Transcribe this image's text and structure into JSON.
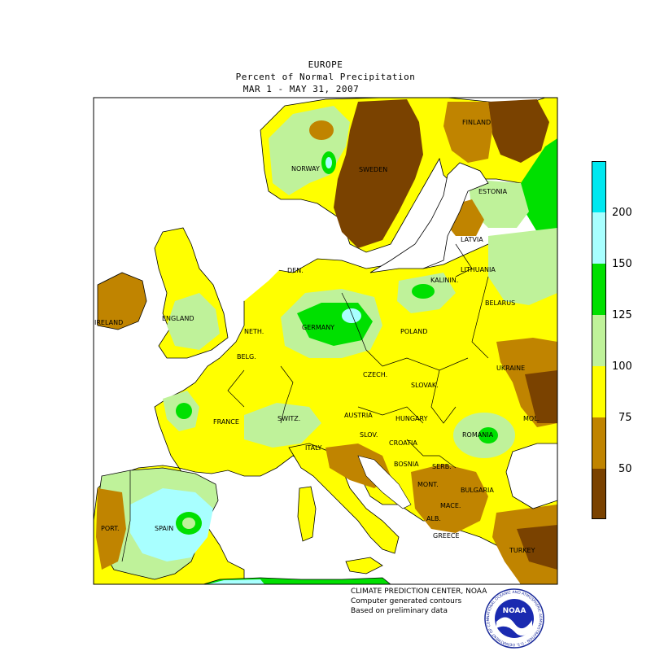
{
  "title": {
    "line1": "EUROPE",
    "line2": "Percent of Normal Precipitation",
    "line3": "MAR  1 - MAY 31, 2007"
  },
  "legend": {
    "labels": [
      "200",
      "150",
      "125",
      "100",
      "75",
      "50"
    ],
    "bins": [
      {
        "color": "#7a4200",
        "range": "<50"
      },
      {
        "color": "#c08400",
        "range": "50-75"
      },
      {
        "color": "#ffff00",
        "range": "75-100"
      },
      {
        "color": "#bff29a",
        "range": "100-125"
      },
      {
        "color": "#00e000",
        "range": "125-150"
      },
      {
        "color": "#a8ffff",
        "range": "150-200"
      },
      {
        "color": "#00e8f0",
        "range": ">200"
      }
    ]
  },
  "countries": [
    {
      "key": "finland",
      "label": "FINLAND"
    },
    {
      "key": "norway",
      "label": "NORWAY"
    },
    {
      "key": "sweden",
      "label": "SWEDEN"
    },
    {
      "key": "estonia",
      "label": "ESTONIA"
    },
    {
      "key": "latvia",
      "label": "LATVIA"
    },
    {
      "key": "lithuania",
      "label": "LITHUANIA"
    },
    {
      "key": "kalinin",
      "label": "KALININ."
    },
    {
      "key": "belarus",
      "label": "BELARUS"
    },
    {
      "key": "den",
      "label": "DEN."
    },
    {
      "key": "ireland",
      "label": "IRELAND"
    },
    {
      "key": "england",
      "label": "ENGLAND"
    },
    {
      "key": "neth",
      "label": "NETH."
    },
    {
      "key": "germany",
      "label": "GERMANY"
    },
    {
      "key": "poland",
      "label": "POLAND"
    },
    {
      "key": "belg",
      "label": "BELG."
    },
    {
      "key": "czech",
      "label": "CZECH."
    },
    {
      "key": "slovak",
      "label": "SLOVAK."
    },
    {
      "key": "ukraine",
      "label": "UKRAINE"
    },
    {
      "key": "france",
      "label": "FRANCE"
    },
    {
      "key": "switz",
      "label": "SWITZ."
    },
    {
      "key": "austria",
      "label": "AUSTRIA"
    },
    {
      "key": "hungary",
      "label": "HUNGARY"
    },
    {
      "key": "romania",
      "label": "ROMANIA"
    },
    {
      "key": "mol",
      "label": "MOL."
    },
    {
      "key": "slov",
      "label": "SLOV."
    },
    {
      "key": "croatia",
      "label": "CROATIA"
    },
    {
      "key": "italy",
      "label": "ITALY"
    },
    {
      "key": "bosnia",
      "label": "BOSNIA"
    },
    {
      "key": "serb",
      "label": "SERB."
    },
    {
      "key": "mont",
      "label": "MONT."
    },
    {
      "key": "bulgaria",
      "label": "BULGARIA"
    },
    {
      "key": "mace",
      "label": "MACE."
    },
    {
      "key": "alb",
      "label": "ALB."
    },
    {
      "key": "greece",
      "label": "GREECE"
    },
    {
      "key": "turkey",
      "label": "TURKEY"
    },
    {
      "key": "spain",
      "label": "SPAIN"
    },
    {
      "key": "port",
      "label": "PORT."
    }
  ],
  "credits": {
    "line1": "CLIMATE PREDICTION CENTER, NOAA",
    "line2": "Computer generated contours",
    "line3": "Based on preliminary data"
  },
  "logo": {
    "text": "NOAA",
    "ring_text": "NATIONAL OCEANIC AND ATMOSPHERIC ADMINISTRATION - U.S. DEPARTMENT OF COMMERCE"
  }
}
